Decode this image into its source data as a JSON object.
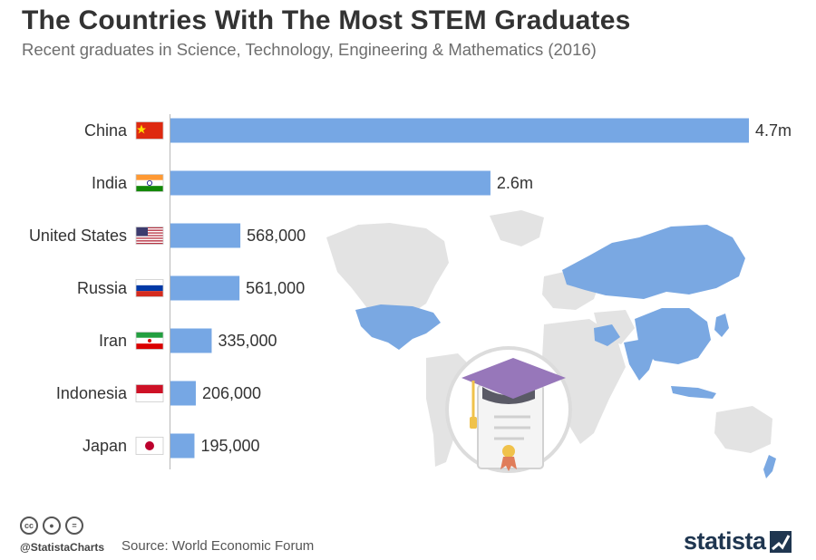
{
  "title": "The Countries With The Most STEM Graduates",
  "subtitle": "Recent graduates in Science, Technology, Engineering & Mathematics (2016)",
  "chart_data": {
    "type": "bar",
    "orientation": "horizontal",
    "categories": [
      "China",
      "India",
      "United States",
      "Russia",
      "Iran",
      "Indonesia",
      "Japan"
    ],
    "values": [
      4700000,
      2600000,
      568000,
      561000,
      335000,
      206000,
      195000
    ],
    "value_labels": [
      "4.7m",
      "2.6m",
      "568,000",
      "561,000",
      "335,000",
      "206,000",
      "195,000"
    ],
    "flags": [
      "china-flag",
      "india-flag",
      "usa-flag",
      "russia-flag",
      "iran-flag",
      "indonesia-flag",
      "japan-flag"
    ],
    "bar_color": "#76a7e4"
  },
  "colors": {
    "bar": "#76a7e4",
    "map_highlight": "#7aa8e2",
    "map_base": "#e3e3e3",
    "cap": "#9777ba",
    "tassel": "#f0c24b"
  },
  "footer": {
    "cc_icons": [
      "cc",
      "by",
      "nd"
    ],
    "handle": "@StatistaCharts",
    "source": "Source: World Economic Forum",
    "logo": "statista"
  }
}
